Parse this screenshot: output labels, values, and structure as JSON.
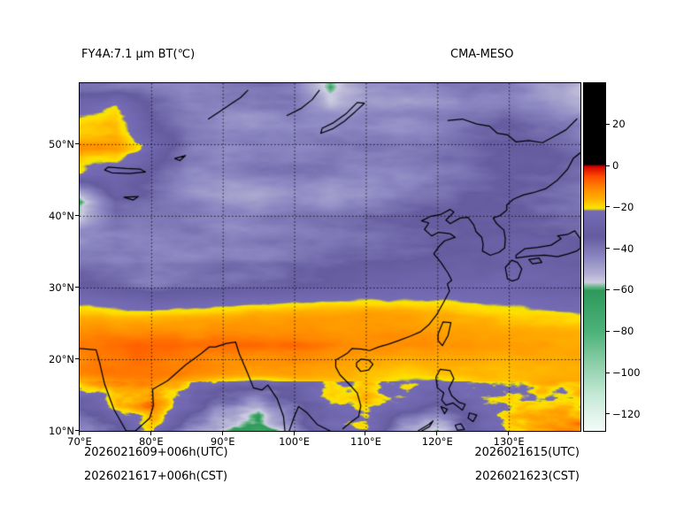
{
  "header": {
    "left_title": "FY4A:7.1 μm BT(℃)",
    "right_title": "CMA-MESO"
  },
  "footer": {
    "left_line1": "2026021609+006h(UTC)",
    "left_line2": "2026021617+006h(CST)",
    "right_line1": "2026021615(UTC)",
    "right_line2": "2026021623(CST)"
  },
  "chart_data": {
    "type": "heatmap",
    "title": "FY4A:7.1 μm BT(℃)",
    "model_label": "CMA-MESO",
    "units": "°C",
    "lon_range": [
      70,
      140
    ],
    "lat_range": [
      10,
      58.5
    ],
    "x_ticks": [
      {
        "value": 70,
        "label": "70°E"
      },
      {
        "value": 80,
        "label": "80°E"
      },
      {
        "value": 90,
        "label": "90°E"
      },
      {
        "value": 100,
        "label": "100°E"
      },
      {
        "value": 110,
        "label": "110°E"
      },
      {
        "value": 120,
        "label": "120°E"
      },
      {
        "value": 130,
        "label": "130°E"
      }
    ],
    "y_ticks": [
      {
        "value": 10,
        "label": "10°N"
      },
      {
        "value": 20,
        "label": "20°N"
      },
      {
        "value": 30,
        "label": "30°N"
      },
      {
        "value": 40,
        "label": "40°N"
      },
      {
        "value": 50,
        "label": "50°N"
      }
    ],
    "grid": {
      "lon": [
        80,
        90,
        100,
        110,
        120,
        130
      ],
      "lat": [
        20,
        30,
        40,
        50
      ]
    },
    "colorbar": {
      "vmax": 40,
      "vmin": -128,
      "ticks": [
        {
          "value": 20,
          "label": "20"
        },
        {
          "value": 0,
          "label": "0"
        },
        {
          "value": -20,
          "label": "−20"
        },
        {
          "value": -40,
          "label": "−40"
        },
        {
          "value": -60,
          "label": "−60"
        },
        {
          "value": -80,
          "label": "−80"
        },
        {
          "value": -100,
          "label": "−100"
        },
        {
          "value": -120,
          "label": "−120"
        }
      ],
      "stops": [
        [
          40,
          "#000000"
        ],
        [
          1,
          "#000000"
        ],
        [
          0,
          "#d40000"
        ],
        [
          -5,
          "#ff4e00"
        ],
        [
          -11,
          "#ff8c00"
        ],
        [
          -16,
          "#ffb300"
        ],
        [
          -19.5,
          "#ffdf00"
        ],
        [
          -20.5,
          "#f2e400"
        ],
        [
          -21.5,
          "#756cb6"
        ],
        [
          -34,
          "#655c9f"
        ],
        [
          -44,
          "#8d88c3"
        ],
        [
          -52,
          "#b3b0d3"
        ],
        [
          -56,
          "#cfcde2"
        ],
        [
          -58,
          "#6fbc8f"
        ],
        [
          -60,
          "#2f9a5b"
        ],
        [
          -80,
          "#4db379"
        ],
        [
          -95,
          "#8ccfa9"
        ],
        [
          -110,
          "#c3e9d5"
        ],
        [
          -120,
          "#e2f4ec"
        ],
        [
          -128,
          "#f3fbf7"
        ]
      ]
    },
    "field": {
      "lons": [
        70,
        75,
        80,
        85,
        90,
        95,
        100,
        105,
        110,
        115,
        120,
        125,
        130,
        135,
        140
      ],
      "lats": [
        58,
        54,
        50,
        46,
        42,
        38,
        34,
        30,
        26,
        22,
        18,
        14,
        10
      ],
      "values_c": [
        [
          -36,
          -38,
          -40,
          -42,
          -40,
          -38,
          -40,
          -58,
          -44,
          -42,
          -40,
          -38,
          -40,
          -46,
          -52
        ],
        [
          -22,
          -16,
          -34,
          -42,
          -44,
          -42,
          -40,
          -44,
          -42,
          -44,
          -42,
          -40,
          -38,
          -42,
          -46
        ],
        [
          -14,
          -15,
          -26,
          -40,
          -44,
          -42,
          -44,
          -42,
          -44,
          -46,
          -44,
          -40,
          -36,
          -38,
          -42
        ],
        [
          -20,
          -24,
          -34,
          -44,
          -46,
          -44,
          -42,
          -44,
          -46,
          -44,
          -42,
          -38,
          -34,
          -36,
          -40
        ],
        [
          -62,
          -34,
          -38,
          -42,
          -46,
          -48,
          -44,
          -46,
          -44,
          -42,
          -38,
          -34,
          -33,
          -35,
          -38
        ],
        [
          -46,
          -40,
          -42,
          -44,
          -46,
          -46,
          -44,
          -42,
          -40,
          -38,
          -36,
          -34,
          -32,
          -34,
          -36
        ],
        [
          -42,
          -44,
          -45,
          -44,
          -42,
          -42,
          -40,
          -38,
          -36,
          -34,
          -33,
          -32,
          -31,
          -32,
          -34
        ],
        [
          -28,
          -32,
          -36,
          -34,
          -32,
          -30,
          -29,
          -28,
          -27,
          -26,
          -26,
          -27,
          -28,
          -30,
          -32
        ],
        [
          -16,
          -17,
          -18,
          -17,
          -16,
          -15,
          -14,
          -14,
          -13,
          -14,
          -15,
          -16,
          -17,
          -18,
          -19
        ],
        [
          -9,
          -8,
          -7,
          -8,
          -8,
          -8,
          -8,
          -9,
          -10,
          -10,
          -11,
          -12,
          -13,
          -14,
          -15
        ],
        [
          -11,
          -9,
          -9,
          -10,
          -12,
          -13,
          -12,
          -14,
          -16,
          -18,
          -16,
          -15,
          -16,
          -15,
          -14
        ],
        [
          -34,
          -22,
          -14,
          -28,
          -42,
          -46,
          -34,
          -22,
          -18,
          -30,
          -38,
          -24,
          -17,
          -15,
          -14
        ],
        [
          -42,
          -34,
          -20,
          -46,
          -58,
          -72,
          -48,
          -28,
          -20,
          -44,
          -52,
          -32,
          -18,
          -16,
          -15
        ]
      ]
    },
    "coastlines": [
      [
        [
          74.0,
          46.8
        ],
        [
          76.5,
          46.6
        ],
        [
          78.5,
          46.5
        ],
        [
          79.2,
          46.1
        ],
        [
          77.0,
          45.9
        ],
        [
          74.5,
          46.0
        ],
        [
          73.5,
          46.4
        ],
        [
          74.0,
          46.8
        ]
      ],
      [
        [
          83.3,
          48.0
        ],
        [
          84.8,
          48.4
        ],
        [
          84.0,
          47.7
        ],
        [
          83.3,
          48.0
        ]
      ],
      [
        [
          76.2,
          42.6
        ],
        [
          78.2,
          42.7
        ],
        [
          77.5,
          42.2
        ],
        [
          76.2,
          42.6
        ]
      ],
      [
        [
          103.7,
          51.5
        ],
        [
          105.5,
          52.2
        ],
        [
          107.0,
          53.2
        ],
        [
          108.5,
          54.5
        ],
        [
          109.8,
          55.7
        ],
        [
          108.8,
          55.8
        ],
        [
          107.2,
          54.2
        ],
        [
          105.5,
          53.0
        ],
        [
          103.9,
          52.2
        ],
        [
          103.7,
          51.5
        ]
      ],
      [
        [
          99.0,
          54.0
        ],
        [
          101.0,
          55.0
        ],
        [
          102.5,
          56.2
        ],
        [
          103.5,
          57.5
        ]
      ],
      [
        [
          88.0,
          53.5
        ],
        [
          89.5,
          54.5
        ],
        [
          91.0,
          55.5
        ],
        [
          92.5,
          56.5
        ],
        [
          93.5,
          57.5
        ]
      ],
      [
        [
          121.5,
          53.3
        ],
        [
          123.5,
          53.5
        ],
        [
          125.5,
          52.8
        ],
        [
          127.3,
          52.5
        ],
        [
          128.4,
          51.5
        ],
        [
          129.8,
          51.3
        ],
        [
          131.0,
          50.3
        ],
        [
          132.8,
          50.5
        ],
        [
          134.7,
          50.2
        ],
        [
          136.2,
          51.0
        ],
        [
          138.0,
          52.0
        ],
        [
          139.5,
          53.5
        ]
      ],
      [
        [
          70.0,
          21.5
        ],
        [
          72.3,
          21.3
        ],
        [
          72.8,
          19.5
        ],
        [
          73.5,
          16.5
        ],
        [
          74.8,
          13.0
        ],
        [
          76.5,
          10.0
        ],
        [
          77.8,
          10.0
        ],
        [
          79.8,
          11.8
        ],
        [
          80.3,
          13.5
        ],
        [
          80.2,
          15.8
        ],
        [
          82.3,
          17.0
        ],
        [
          84.8,
          19.2
        ],
        [
          87.0,
          20.8
        ],
        [
          88.1,
          21.7
        ],
        [
          89.0,
          21.7
        ],
        [
          90.5,
          22.2
        ],
        [
          91.8,
          22.4
        ],
        [
          92.3,
          20.8
        ],
        [
          93.5,
          18.0
        ],
        [
          94.3,
          16.0
        ],
        [
          95.5,
          15.7
        ],
        [
          96.3,
          16.4
        ],
        [
          97.6,
          14.5
        ],
        [
          98.5,
          12.0
        ],
        [
          98.7,
          10.0
        ]
      ],
      [
        [
          99.3,
          10.0
        ],
        [
          100.0,
          12.0
        ],
        [
          100.6,
          13.4
        ],
        [
          101.7,
          12.6
        ],
        [
          103.2,
          10.9
        ],
        [
          105.0,
          10.0
        ]
      ],
      [
        [
          106.8,
          10.3
        ],
        [
          108.0,
          11.3
        ],
        [
          109.0,
          12.0
        ],
        [
          109.3,
          13.5
        ],
        [
          108.8,
          15.3
        ],
        [
          107.6,
          16.6
        ],
        [
          106.4,
          17.8
        ],
        [
          105.8,
          18.9
        ],
        [
          105.8,
          19.9
        ],
        [
          106.7,
          20.4
        ],
        [
          107.5,
          20.9
        ],
        [
          108.1,
          21.5
        ],
        [
          109.5,
          21.4
        ],
        [
          110.5,
          21.2
        ],
        [
          111.8,
          21.7
        ],
        [
          113.2,
          22.1
        ],
        [
          114.6,
          22.6
        ],
        [
          116.2,
          23.2
        ],
        [
          117.6,
          23.8
        ],
        [
          118.8,
          24.8
        ],
        [
          119.9,
          26.2
        ],
        [
          120.8,
          27.8
        ],
        [
          121.7,
          29.5
        ],
        [
          121.4,
          30.5
        ],
        [
          122.0,
          31.0
        ],
        [
          121.5,
          32.0
        ],
        [
          120.5,
          33.5
        ],
        [
          119.5,
          34.7
        ],
        [
          120.3,
          35.8
        ],
        [
          121.0,
          36.5
        ],
        [
          122.5,
          37.0
        ],
        [
          121.8,
          37.5
        ],
        [
          120.2,
          37.7
        ],
        [
          119.2,
          37.2
        ],
        [
          118.2,
          38.1
        ],
        [
          118.8,
          39.0
        ],
        [
          117.8,
          39.3
        ],
        [
          119.0,
          39.9
        ],
        [
          120.5,
          40.2
        ],
        [
          121.8,
          40.9
        ],
        [
          122.3,
          40.5
        ],
        [
          121.2,
          39.4
        ],
        [
          121.8,
          38.9
        ],
        [
          123.2,
          39.7
        ],
        [
          124.3,
          39.8
        ],
        [
          124.5,
          39.5
        ],
        [
          125.1,
          38.7
        ],
        [
          125.4,
          37.8
        ],
        [
          126.2,
          37.0
        ],
        [
          126.4,
          36.0
        ],
        [
          126.3,
          35.1
        ],
        [
          127.4,
          34.5
        ],
        [
          128.6,
          34.9
        ],
        [
          129.4,
          35.5
        ],
        [
          129.5,
          36.8
        ],
        [
          129.3,
          38.0
        ],
        [
          128.3,
          38.9
        ],
        [
          127.8,
          39.7
        ],
        [
          128.7,
          40.0
        ],
        [
          129.7,
          40.8
        ],
        [
          129.7,
          41.5
        ],
        [
          130.6,
          42.3
        ],
        [
          132.0,
          42.9
        ],
        [
          133.3,
          43.2
        ],
        [
          135.2,
          43.8
        ],
        [
          136.8,
          45.0
        ],
        [
          138.2,
          46.5
        ],
        [
          139.0,
          48.0
        ],
        [
          140.0,
          48.8
        ]
      ],
      [
        [
          108.7,
          19.5
        ],
        [
          109.3,
          20.0
        ],
        [
          110.4,
          19.9
        ],
        [
          111.0,
          19.3
        ],
        [
          110.4,
          18.5
        ],
        [
          109.3,
          18.3
        ],
        [
          108.7,
          19.0
        ],
        [
          108.7,
          19.5
        ]
      ],
      [
        [
          120.1,
          23.5
        ],
        [
          120.8,
          25.2
        ],
        [
          121.9,
          25.1
        ],
        [
          121.5,
          23.3
        ],
        [
          120.7,
          21.9
        ],
        [
          120.1,
          22.6
        ],
        [
          120.1,
          23.5
        ]
      ],
      [
        [
          129.8,
          31.2
        ],
        [
          129.5,
          32.8
        ],
        [
          130.4,
          33.8
        ],
        [
          131.2,
          33.5
        ],
        [
          131.8,
          32.6
        ],
        [
          131.3,
          31.2
        ],
        [
          130.5,
          30.9
        ],
        [
          129.8,
          31.2
        ]
      ],
      [
        [
          131.0,
          34.1
        ],
        [
          133.0,
          34.4
        ],
        [
          135.0,
          34.5
        ],
        [
          136.8,
          34.3
        ],
        [
          138.3,
          34.7
        ],
        [
          139.5,
          35.1
        ],
        [
          140.0,
          35.5
        ],
        [
          140.0,
          36.8
        ],
        [
          139.2,
          37.9
        ],
        [
          138.2,
          37.4
        ],
        [
          136.8,
          37.2
        ],
        [
          137.3,
          36.8
        ],
        [
          135.9,
          35.9
        ],
        [
          134.0,
          35.6
        ],
        [
          132.2,
          35.4
        ],
        [
          131.0,
          34.5
        ],
        [
          131.0,
          34.1
        ]
      ],
      [
        [
          132.8,
          33.9
        ],
        [
          134.2,
          34.1
        ],
        [
          134.6,
          33.5
        ],
        [
          133.3,
          33.3
        ],
        [
          132.8,
          33.9
        ]
      ],
      [
        [
          120.0,
          16.0
        ],
        [
          119.8,
          17.5
        ],
        [
          120.4,
          18.6
        ],
        [
          121.8,
          18.4
        ],
        [
          122.3,
          17.3
        ],
        [
          121.6,
          15.9
        ],
        [
          122.0,
          14.9
        ],
        [
          123.0,
          14.0
        ],
        [
          123.9,
          13.7
        ],
        [
          123.5,
          12.9
        ],
        [
          122.2,
          13.9
        ],
        [
          121.2,
          13.6
        ],
        [
          120.6,
          14.3
        ],
        [
          120.9,
          15.3
        ],
        [
          120.0,
          16.0
        ]
      ],
      [
        [
          121.0,
          12.4
        ],
        [
          121.4,
          13.0
        ],
        [
          120.5,
          13.4
        ],
        [
          121.0,
          12.4
        ]
      ],
      [
        [
          124.5,
          12.5
        ],
        [
          125.5,
          12.2
        ],
        [
          125.0,
          11.3
        ],
        [
          124.3,
          11.8
        ],
        [
          124.5,
          12.5
        ]
      ],
      [
        [
          122.5,
          10.8
        ],
        [
          123.3,
          11.0
        ],
        [
          123.8,
          10.2
        ],
        [
          122.8,
          10.1
        ],
        [
          122.5,
          10.8
        ]
      ],
      [
        [
          117.3,
          10.0
        ],
        [
          118.8,
          10.9
        ],
        [
          119.4,
          11.4
        ],
        [
          118.9,
          10.6
        ],
        [
          117.8,
          10.0
        ]
      ]
    ]
  }
}
